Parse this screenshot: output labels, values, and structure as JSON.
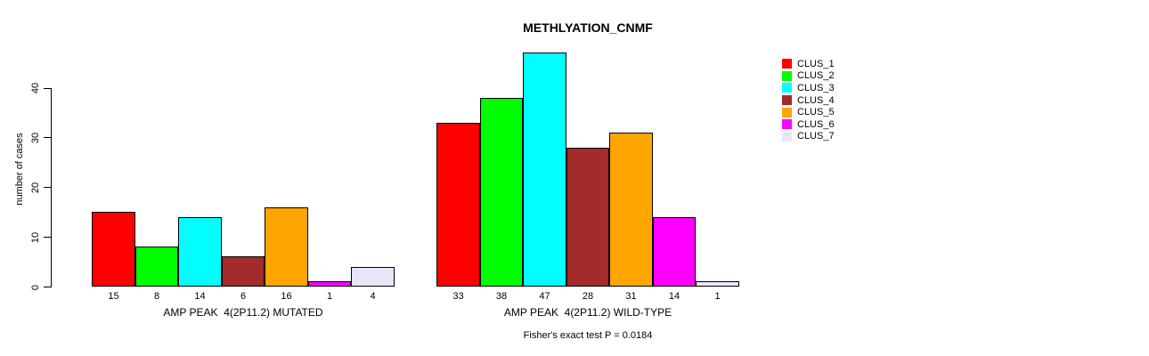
{
  "chart_data": {
    "type": "bar",
    "title": "METHLYATION_CNMF",
    "ylabel": "number of cases",
    "xlabel": "",
    "ylim": [
      0,
      47
    ],
    "yticks": [
      0,
      10,
      20,
      30,
      40
    ],
    "grid": false,
    "legend_position": "right",
    "bar_borders": "#000000",
    "categories": [
      "CLUS_1",
      "CLUS_2",
      "CLUS_3",
      "CLUS_4",
      "CLUS_5",
      "CLUS_6",
      "CLUS_7"
    ],
    "colors": [
      "#FF0000",
      "#00FF00",
      "#00FFFF",
      "#A52A2A",
      "#FFA500",
      "#FF00FF",
      "#E6E6FA"
    ],
    "series": [
      {
        "name": "AMP PEAK  4(2P11.2) MUTATED",
        "values": [
          15,
          8,
          14,
          6,
          16,
          1,
          4
        ]
      },
      {
        "name": "AMP PEAK  4(2P11.2) WILD-TYPE",
        "values": [
          33,
          38,
          47,
          28,
          31,
          14,
          1
        ]
      }
    ],
    "bar_value_labels_shown": true,
    "annotation": "Fisher's exact test P = 0.0184"
  },
  "legend": {
    "items": [
      {
        "label": "CLUS_1",
        "color": "#FF0000"
      },
      {
        "label": "CLUS_2",
        "color": "#00FF00"
      },
      {
        "label": "CLUS_3",
        "color": "#00FFFF"
      },
      {
        "label": "CLUS_4",
        "color": "#A52A2A"
      },
      {
        "label": "CLUS_5",
        "color": "#FFA500"
      },
      {
        "label": "CLUS_6",
        "color": "#FF00FF"
      },
      {
        "label": "CLUS_7",
        "color": "#E6E6FA"
      }
    ]
  }
}
